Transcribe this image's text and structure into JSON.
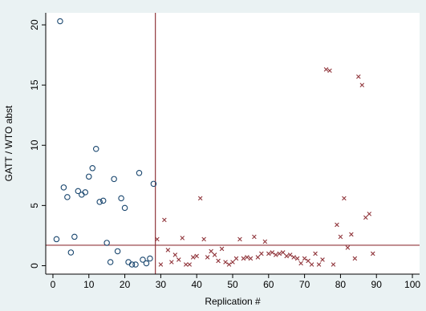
{
  "chart_data": {
    "type": "scatter",
    "xlabel": "Replication #",
    "ylabel": "GATT / WTO abst",
    "xlim": [
      -2,
      102
    ],
    "ylim": [
      -0.7,
      21.0
    ],
    "xticks": [
      "0",
      "10",
      "20",
      "30",
      "40",
      "50",
      "60",
      "70",
      "80",
      "90",
      "100"
    ],
    "xtick_values": [
      0,
      10,
      20,
      30,
      40,
      50,
      60,
      70,
      80,
      90,
      100
    ],
    "yticks": [
      "0",
      "5",
      "10",
      "15",
      "20"
    ],
    "ytick_values": [
      0,
      5,
      10,
      15,
      20
    ],
    "vline_x": 28.5,
    "hline_y": 1.7,
    "colors": {
      "background": "#eaf2f3",
      "plot_background": "#ffffff",
      "circle_marker": "#1a476f",
      "cross_marker": "#90353b",
      "reference_line": "#90353b",
      "axis": "#000000"
    },
    "series": [
      {
        "marker": "hollow-circle",
        "points": [
          [
            1,
            2.2
          ],
          [
            2,
            20.3
          ],
          [
            3,
            6.5
          ],
          [
            4,
            5.7
          ],
          [
            5,
            1.1
          ],
          [
            6,
            2.4
          ],
          [
            7,
            6.2
          ],
          [
            8,
            5.9
          ],
          [
            9,
            6.1
          ],
          [
            10,
            7.4
          ],
          [
            11,
            8.1
          ],
          [
            12,
            9.7
          ],
          [
            13,
            5.3
          ],
          [
            14,
            5.4
          ],
          [
            15,
            1.9
          ],
          [
            16,
            0.3
          ],
          [
            17,
            7.2
          ],
          [
            18,
            1.2
          ],
          [
            19,
            5.6
          ],
          [
            20,
            4.8
          ],
          [
            21,
            0.3
          ],
          [
            22,
            0.1
          ],
          [
            23,
            0.1
          ],
          [
            24,
            7.7
          ],
          [
            25,
            0.5
          ],
          [
            26,
            0.2
          ],
          [
            27,
            0.6
          ],
          [
            28,
            6.8
          ]
        ]
      },
      {
        "marker": "x",
        "points": [
          [
            29,
            2.2
          ],
          [
            30,
            0.1
          ],
          [
            31,
            3.8
          ],
          [
            32,
            1.3
          ],
          [
            33,
            0.3
          ],
          [
            34,
            0.9
          ],
          [
            35,
            0.5
          ],
          [
            36,
            2.3
          ],
          [
            37,
            0.1
          ],
          [
            38,
            0.1
          ],
          [
            39,
            0.7
          ],
          [
            40,
            0.8
          ],
          [
            41,
            5.6
          ],
          [
            42,
            2.2
          ],
          [
            43,
            0.7
          ],
          [
            44,
            1.2
          ],
          [
            45,
            0.9
          ],
          [
            46,
            0.4
          ],
          [
            47,
            1.4
          ],
          [
            48,
            0.3
          ],
          [
            49,
            0.1
          ],
          [
            50,
            0.3
          ],
          [
            51,
            0.6
          ],
          [
            52,
            2.2
          ],
          [
            53,
            0.6
          ],
          [
            54,
            0.7
          ],
          [
            55,
            0.6
          ],
          [
            56,
            2.4
          ],
          [
            57,
            0.7
          ],
          [
            58,
            1.0
          ],
          [
            59,
            2.0
          ],
          [
            60,
            1.0
          ],
          [
            61,
            1.1
          ],
          [
            62,
            0.9
          ],
          [
            63,
            1.0
          ],
          [
            64,
            1.1
          ],
          [
            65,
            0.8
          ],
          [
            66,
            0.9
          ],
          [
            67,
            0.7
          ],
          [
            68,
            0.6
          ],
          [
            69,
            0.2
          ],
          [
            70,
            0.6
          ],
          [
            71,
            0.4
          ],
          [
            72,
            0.1
          ],
          [
            73,
            1.0
          ],
          [
            74,
            0.1
          ],
          [
            75,
            0.5
          ],
          [
            76,
            16.3
          ],
          [
            77,
            16.2
          ],
          [
            78,
            0.1
          ],
          [
            79,
            3.4
          ],
          [
            80,
            2.4
          ],
          [
            81,
            5.6
          ],
          [
            82,
            1.5
          ],
          [
            83,
            2.6
          ],
          [
            84,
            0.6
          ],
          [
            85,
            15.7
          ],
          [
            86,
            15.0
          ],
          [
            87,
            4.0
          ],
          [
            88,
            4.3
          ],
          [
            89,
            1.0
          ]
        ]
      }
    ]
  }
}
